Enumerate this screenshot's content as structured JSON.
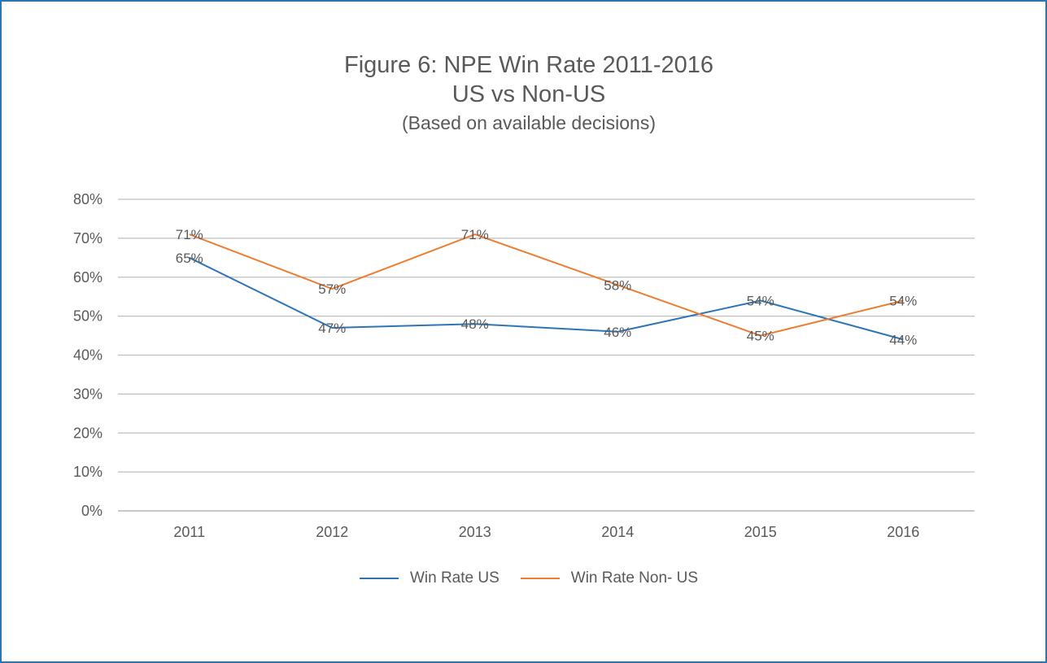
{
  "chart_data": {
    "type": "line",
    "title": "Figure 6: NPE Win Rate 2011-2016",
    "subtitle": "US vs Non-US",
    "note": "(Based on available decisions)",
    "categories": [
      "2011",
      "2012",
      "2013",
      "2014",
      "2015",
      "2016"
    ],
    "yticks": [
      "0%",
      "10%",
      "20%",
      "30%",
      "40%",
      "50%",
      "60%",
      "70%",
      "80%"
    ],
    "ylim": [
      0,
      80
    ],
    "grid": true,
    "legend_position": "bottom",
    "series": [
      {
        "name": "Win Rate US",
        "color": "#2e75b6",
        "values": [
          65,
          47,
          48,
          46,
          54,
          44
        ],
        "labels": [
          "65%",
          "47%",
          "48%",
          "46%",
          "54%",
          "44%"
        ]
      },
      {
        "name": "Win Rate Non- US",
        "color": "#ed7d31",
        "values": [
          71,
          57,
          71,
          58,
          45,
          54
        ],
        "labels": [
          "71%",
          "57%",
          "71%",
          "58%",
          "45%",
          "54%"
        ]
      }
    ]
  }
}
